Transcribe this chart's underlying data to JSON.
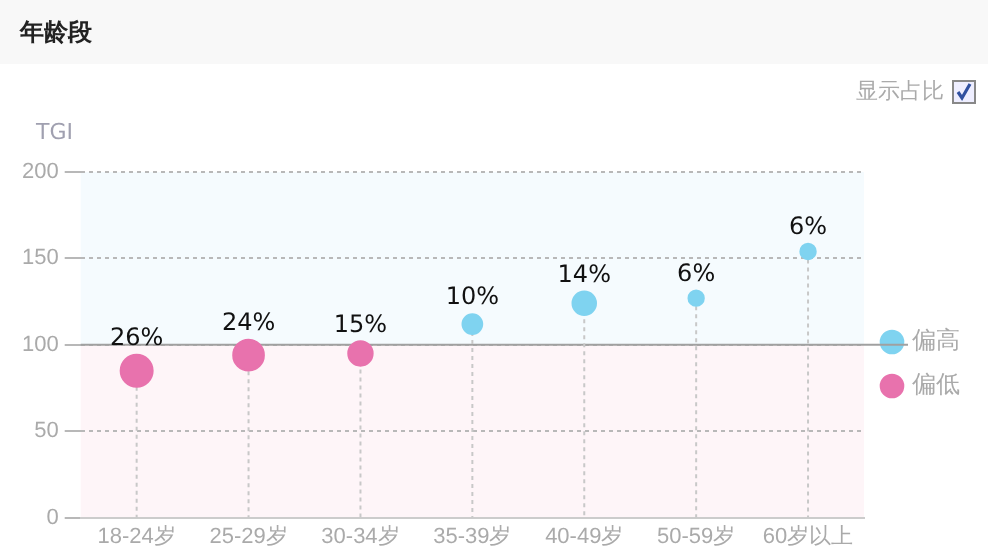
{
  "chart_data": {
    "type": "bubble",
    "title": "年龄段",
    "ylabel": "TGI",
    "categories": [
      "18-24岁",
      "25-29岁",
      "30-34岁",
      "35-39岁",
      "40-49岁",
      "50-59岁",
      "60岁以上"
    ],
    "series": [
      {
        "name": "偏高",
        "color": "#7fd3f0",
        "values": [
          null,
          null,
          null,
          112,
          124,
          127,
          154
        ],
        "sizes": [
          null,
          null,
          null,
          0.38,
          0.54,
          0.23,
          0.23
        ]
      },
      {
        "name": "偏低",
        "color": "#e872ad",
        "values": [
          85,
          94,
          95,
          null,
          null,
          null,
          null
        ],
        "sizes": [
          1,
          0.92,
          0.58,
          null,
          null,
          null,
          null
        ]
      }
    ],
    "ylim": [
      0,
      200
    ],
    "yticks": [
      0,
      50,
      100,
      150,
      200
    ],
    "grid": "y",
    "legend": "right",
    "bands": [
      {
        "axis": "y",
        "from": 100,
        "to": 200,
        "color": "#f5fbfe"
      },
      {
        "axis": "y",
        "from": 0,
        "to": 100,
        "color": "#fef5f8"
      }
    ],
    "ref_lines": [
      {
        "axis": "y",
        "value": 100,
        "color": "#a0a0a0"
      }
    ],
    "annotations": [
      "显示占比",
      {
        "text": "26%",
        "x": "18-24岁",
        "y": 85
      },
      {
        "text": "24%",
        "x": "25-29岁",
        "y": 94
      },
      {
        "text": "15%",
        "x": "30-34岁",
        "y": 95
      },
      {
        "text": "10%",
        "x": "35-39岁",
        "y": 112
      },
      {
        "text": "14%",
        "x": "40-49岁",
        "y": 124
      },
      {
        "text": "6%",
        "x": "50-59岁",
        "y": 127
      },
      {
        "text": "6%",
        "x": "60岁以上",
        "y": 154
      }
    ]
  }
}
